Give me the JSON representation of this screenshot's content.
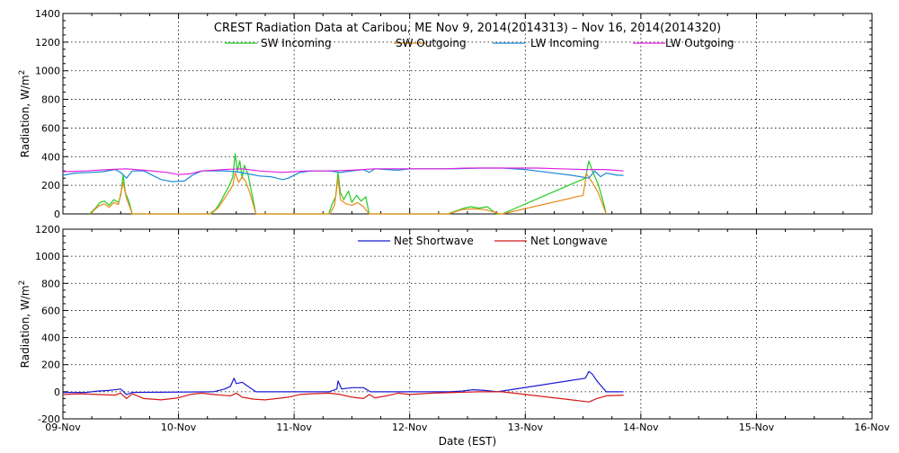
{
  "chart_data": [
    {
      "type": "line",
      "title": "CREST Radiation Data at Caribou, ME   Nov  9, 2014(2014313) – Nov 16, 2014(2014320)",
      "xlabel": "",
      "ylabel": "Radiation, W/m^2",
      "xlim": [
        0,
        7
      ],
      "ylim": [
        0,
        1400
      ],
      "yticks": [
        0,
        200,
        400,
        600,
        800,
        1000,
        1200,
        1400
      ],
      "grid": true,
      "legend_position": "top-center",
      "series": [
        {
          "name": "SW Incoming",
          "color": "#22cc22",
          "points": [
            [
              0.23,
              0
            ],
            [
              0.28,
              40
            ],
            [
              0.32,
              80
            ],
            [
              0.36,
              90
            ],
            [
              0.4,
              60
            ],
            [
              0.44,
              100
            ],
            [
              0.48,
              80
            ],
            [
              0.5,
              130
            ],
            [
              0.52,
              270
            ],
            [
              0.54,
              150
            ],
            [
              0.57,
              90
            ],
            [
              0.6,
              0
            ],
            [
              1.27,
              0
            ],
            [
              1.32,
              30
            ],
            [
              1.36,
              80
            ],
            [
              1.4,
              140
            ],
            [
              1.44,
              200
            ],
            [
              1.47,
              260
            ],
            [
              1.49,
              420
            ],
            [
              1.51,
              300
            ],
            [
              1.53,
              370
            ],
            [
              1.55,
              250
            ],
            [
              1.57,
              340
            ],
            [
              1.6,
              280
            ],
            [
              1.63,
              160
            ],
            [
              1.67,
              0
            ],
            [
              2.3,
              0
            ],
            [
              2.33,
              70
            ],
            [
              2.36,
              120
            ],
            [
              2.38,
              290
            ],
            [
              2.4,
              150
            ],
            [
              2.43,
              100
            ],
            [
              2.47,
              160
            ],
            [
              2.5,
              80
            ],
            [
              2.54,
              130
            ],
            [
              2.58,
              90
            ],
            [
              2.62,
              120
            ],
            [
              2.65,
              0
            ],
            [
              3.33,
              0
            ],
            [
              3.4,
              20
            ],
            [
              3.47,
              40
            ],
            [
              3.53,
              50
            ],
            [
              3.6,
              40
            ],
            [
              3.67,
              50
            ],
            [
              3.72,
              20
            ],
            [
              3.76,
              0
            ],
            [
              3.8,
              0
            ],
            [
              4.52,
              250
            ],
            [
              4.55,
              370
            ],
            [
              4.58,
              300
            ],
            [
              4.63,
              210
            ],
            [
              4.67,
              100
            ],
            [
              4.7,
              0
            ]
          ]
        },
        {
          "name": "SW Outgoing",
          "color": "#e88a1a",
          "points": [
            [
              0.24,
              0
            ],
            [
              0.28,
              35
            ],
            [
              0.32,
              60
            ],
            [
              0.36,
              70
            ],
            [
              0.4,
              45
            ],
            [
              0.44,
              80
            ],
            [
              0.48,
              65
            ],
            [
              0.52,
              220
            ],
            [
              0.55,
              110
            ],
            [
              0.6,
              0
            ],
            [
              1.28,
              0
            ],
            [
              1.34,
              40
            ],
            [
              1.4,
              110
            ],
            [
              1.44,
              160
            ],
            [
              1.47,
              200
            ],
            [
              1.49,
              290
            ],
            [
              1.52,
              220
            ],
            [
              1.55,
              260
            ],
            [
              1.58,
              230
            ],
            [
              1.62,
              140
            ],
            [
              1.67,
              0
            ],
            [
              2.31,
              0
            ],
            [
              2.35,
              60
            ],
            [
              2.38,
              250
            ],
            [
              2.4,
              100
            ],
            [
              2.45,
              70
            ],
            [
              2.5,
              60
            ],
            [
              2.55,
              80
            ],
            [
              2.6,
              50
            ],
            [
              2.65,
              0
            ],
            [
              3.34,
              0
            ],
            [
              3.45,
              30
            ],
            [
              3.55,
              35
            ],
            [
              3.65,
              30
            ],
            [
              3.72,
              15
            ],
            [
              3.78,
              0
            ],
            [
              3.8,
              0
            ],
            [
              4.5,
              130
            ],
            [
              4.53,
              280
            ],
            [
              4.58,
              220
            ],
            [
              4.63,
              150
            ],
            [
              4.7,
              0
            ]
          ]
        },
        {
          "name": "LW Incoming",
          "color": "#1a8ad4",
          "points": [
            [
              0,
              270
            ],
            [
              0.1,
              285
            ],
            [
              0.25,
              290
            ],
            [
              0.35,
              295
            ],
            [
              0.45,
              310
            ],
            [
              0.5,
              290
            ],
            [
              0.55,
              250
            ],
            [
              0.6,
              300
            ],
            [
              0.7,
              300
            ],
            [
              0.85,
              240
            ],
            [
              0.95,
              225
            ],
            [
              1.05,
              230
            ],
            [
              1.12,
              270
            ],
            [
              1.2,
              300
            ],
            [
              1.3,
              300
            ],
            [
              1.4,
              300
            ],
            [
              1.5,
              295
            ],
            [
              1.6,
              280
            ],
            [
              1.7,
              265
            ],
            [
              1.8,
              260
            ],
            [
              1.9,
              240
            ],
            [
              1.95,
              250
            ],
            [
              2.05,
              290
            ],
            [
              2.15,
              300
            ],
            [
              2.3,
              300
            ],
            [
              2.4,
              290
            ],
            [
              2.5,
              300
            ],
            [
              2.6,
              310
            ],
            [
              2.65,
              290
            ],
            [
              2.7,
              315
            ],
            [
              2.8,
              310
            ],
            [
              2.9,
              305
            ],
            [
              3.0,
              315
            ],
            [
              3.2,
              315
            ],
            [
              3.4,
              315
            ],
            [
              3.6,
              320
            ],
            [
              3.8,
              320
            ],
            [
              4.0,
              310
            ],
            [
              4.2,
              290
            ],
            [
              4.4,
              270
            ],
            [
              4.55,
              250
            ],
            [
              4.6,
              300
            ],
            [
              4.65,
              260
            ],
            [
              4.7,
              285
            ],
            [
              4.8,
              270
            ],
            [
              4.85,
              270
            ]
          ]
        },
        {
          "name": "LW Outgoing",
          "color": "#e020e0",
          "points": [
            [
              0,
              295
            ],
            [
              0.2,
              300
            ],
            [
              0.4,
              310
            ],
            [
              0.55,
              315
            ],
            [
              0.7,
              305
            ],
            [
              0.9,
              290
            ],
            [
              1.0,
              275
            ],
            [
              1.1,
              280
            ],
            [
              1.2,
              300
            ],
            [
              1.4,
              310
            ],
            [
              1.55,
              315
            ],
            [
              1.7,
              300
            ],
            [
              1.9,
              290
            ],
            [
              2.1,
              300
            ],
            [
              2.3,
              300
            ],
            [
              2.5,
              305
            ],
            [
              2.7,
              315
            ],
            [
              2.9,
              315
            ],
            [
              3.1,
              315
            ],
            [
              3.3,
              315
            ],
            [
              3.5,
              320
            ],
            [
              3.7,
              320
            ],
            [
              3.9,
              320
            ],
            [
              4.1,
              320
            ],
            [
              4.3,
              315
            ],
            [
              4.5,
              310
            ],
            [
              4.7,
              310
            ],
            [
              4.85,
              300
            ]
          ]
        }
      ]
    },
    {
      "type": "line",
      "title": "",
      "xlabel": "Date (EST)",
      "ylabel": "Radiation, W/m^2",
      "xlim": [
        0,
        7
      ],
      "ylim": [
        -200,
        1200
      ],
      "yticks": [
        -200,
        0,
        200,
        400,
        600,
        800,
        1000,
        1200
      ],
      "xtick_labels": [
        "09-Nov",
        "10-Nov",
        "11-Nov",
        "12-Nov",
        "13-Nov",
        "14-Nov",
        "15-Nov",
        "16-Nov"
      ],
      "grid": true,
      "legend_position": "top-center",
      "series": [
        {
          "name": "Net Shortwave",
          "color": "#1a1ad4",
          "points": [
            [
              0,
              -5
            ],
            [
              0.2,
              -5
            ],
            [
              0.3,
              5
            ],
            [
              0.4,
              10
            ],
            [
              0.5,
              20
            ],
            [
              0.55,
              -20
            ],
            [
              0.6,
              -5
            ],
            [
              1.3,
              0
            ],
            [
              1.4,
              20
            ],
            [
              1.45,
              40
            ],
            [
              1.48,
              100
            ],
            [
              1.5,
              60
            ],
            [
              1.55,
              70
            ],
            [
              1.6,
              40
            ],
            [
              1.67,
              0
            ],
            [
              2.3,
              0
            ],
            [
              2.37,
              20
            ],
            [
              2.38,
              80
            ],
            [
              2.41,
              20
            ],
            [
              2.5,
              30
            ],
            [
              2.6,
              30
            ],
            [
              2.66,
              0
            ],
            [
              3.35,
              0
            ],
            [
              3.45,
              5
            ],
            [
              3.55,
              15
            ],
            [
              3.65,
              10
            ],
            [
              3.76,
              0
            ],
            [
              4.52,
              100
            ],
            [
              4.55,
              150
            ],
            [
              4.58,
              130
            ],
            [
              4.62,
              80
            ],
            [
              4.7,
              0
            ],
            [
              4.85,
              0
            ]
          ]
        },
        {
          "name": "Net Longwave",
          "color": "#d41a1a",
          "points": [
            [
              0,
              -20
            ],
            [
              0.15,
              -15
            ],
            [
              0.3,
              -20
            ],
            [
              0.45,
              -25
            ],
            [
              0.5,
              -10
            ],
            [
              0.55,
              -50
            ],
            [
              0.6,
              -15
            ],
            [
              0.7,
              -50
            ],
            [
              0.85,
              -60
            ],
            [
              1.0,
              -45
            ],
            [
              1.1,
              -20
            ],
            [
              1.2,
              -10
            ],
            [
              1.3,
              -20
            ],
            [
              1.45,
              -30
            ],
            [
              1.5,
              -10
            ],
            [
              1.55,
              -40
            ],
            [
              1.65,
              -55
            ],
            [
              1.75,
              -60
            ],
            [
              1.85,
              -50
            ],
            [
              1.95,
              -40
            ],
            [
              2.05,
              -20
            ],
            [
              2.15,
              -15
            ],
            [
              2.3,
              -10
            ],
            [
              2.4,
              -20
            ],
            [
              2.5,
              -40
            ],
            [
              2.6,
              -50
            ],
            [
              2.65,
              -20
            ],
            [
              2.7,
              -45
            ],
            [
              2.8,
              -30
            ],
            [
              2.9,
              -10
            ],
            [
              3.0,
              -20
            ],
            [
              3.2,
              -10
            ],
            [
              3.4,
              -5
            ],
            [
              3.6,
              0
            ],
            [
              3.8,
              0
            ],
            [
              4.0,
              -20
            ],
            [
              4.2,
              -40
            ],
            [
              4.4,
              -60
            ],
            [
              4.55,
              -75
            ],
            [
              4.62,
              -50
            ],
            [
              4.7,
              -30
            ],
            [
              4.85,
              -25
            ]
          ]
        }
      ]
    }
  ]
}
